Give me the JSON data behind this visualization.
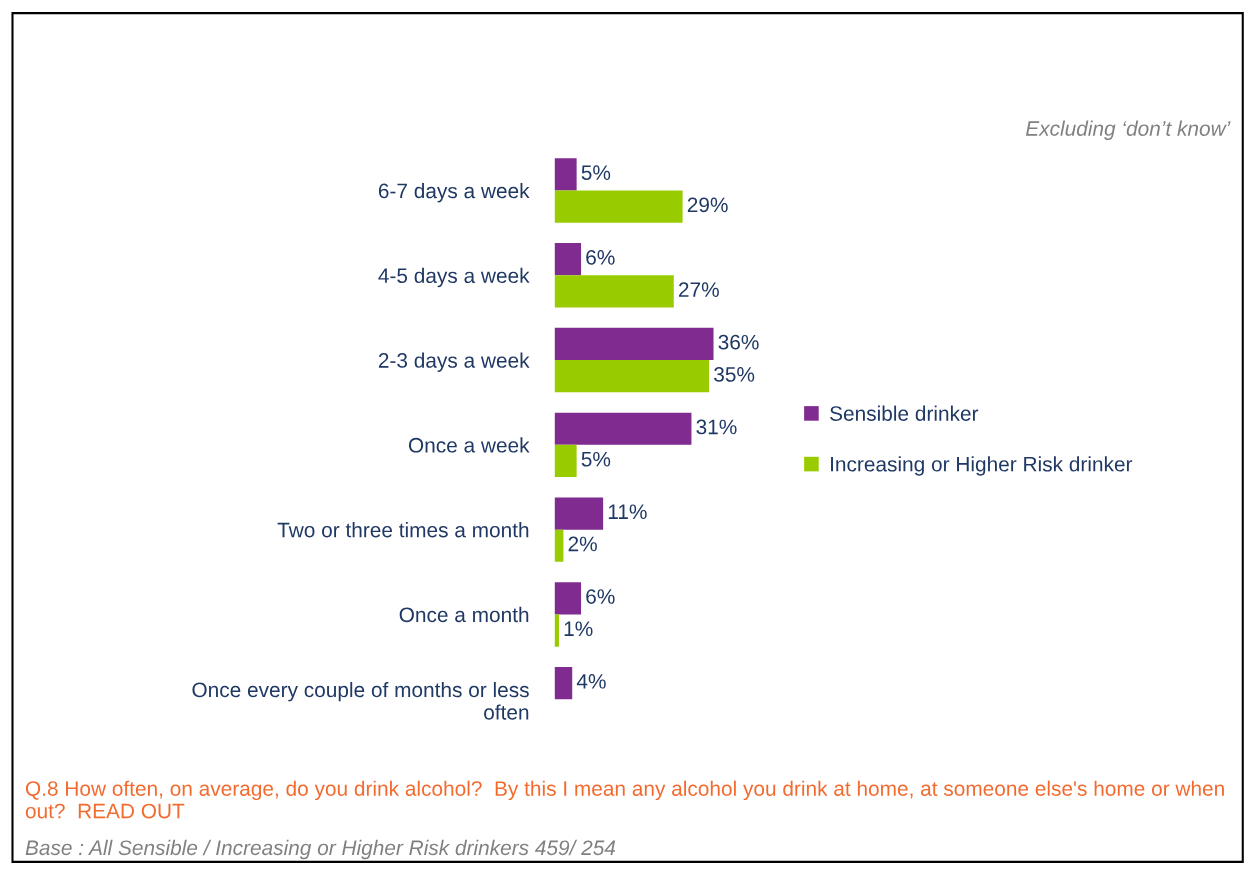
{
  "chart_data": {
    "type": "bar",
    "orientation": "horizontal",
    "legend": "right",
    "grid": false,
    "categories": [
      "6-7 days a week",
      "4-5 days a week",
      "2-3 days a week",
      "Once a week",
      "Two or three times a month",
      "Once a month",
      "Once every couple of months or less often"
    ],
    "series": [
      {
        "name": "Sensible drinker",
        "color": "#7f2b8f",
        "values": [
          5,
          6,
          36,
          31,
          11,
          6,
          4
        ],
        "value_labels": [
          "5%",
          "6%",
          "36%",
          "31%",
          "11%",
          "6%",
          "4%"
        ]
      },
      {
        "name": "Increasing or Higher Risk drinker",
        "color": "#99cc00",
        "values": [
          29,
          27,
          35,
          5,
          2,
          1,
          null
        ],
        "value_labels": [
          "29%",
          "27%",
          "35%",
          "5%",
          "2%",
          "1%",
          null
        ]
      }
    ],
    "annotations": [
      "Excluding ‘don’t know’",
      "Q.8 How often, on average, do you drink alcohol?  By this I mean any alcohol you drink at home, at someone else's home or when out?  READ OUT",
      "Base : All Sensible / Increasing or Higher Risk drinkers 459/ 254"
    ]
  }
}
